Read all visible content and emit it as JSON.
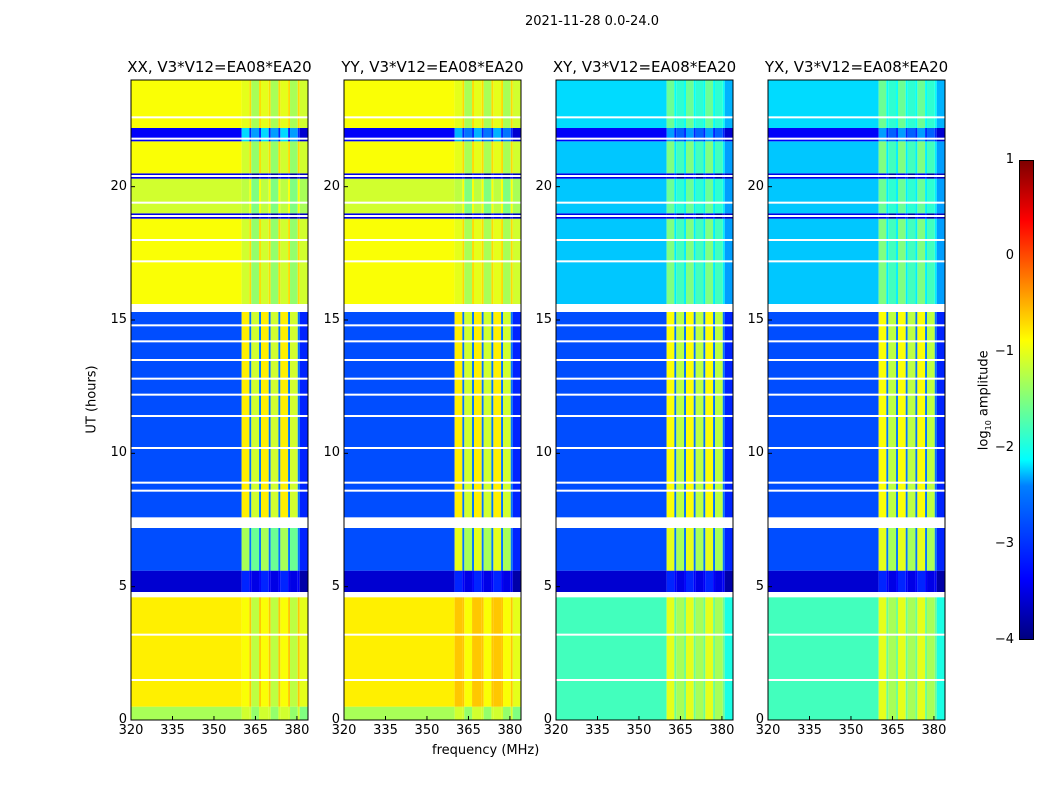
{
  "suptitle": "2021-11-28 0.0-24.0",
  "chart_data": {
    "type": "heatmap",
    "xlabel": "frequency (MHz)",
    "ylabel": "UT (hours)",
    "xlim": [
      320,
      384
    ],
    "ylim": [
      0,
      24
    ],
    "xticks": [
      "320",
      "335",
      "350",
      "365",
      "380"
    ],
    "yticks": [
      "0",
      "5",
      "10",
      "15",
      "20"
    ],
    "colorbar": {
      "label": "log10 amplitude",
      "label_main": "log",
      "label_sub": "10",
      "label_rest": " amplitude",
      "range": [
        -4,
        1
      ],
      "ticks": [
        "1",
        "0",
        "−1",
        "−2",
        "−3",
        "−4"
      ],
      "colormap": "jet"
    },
    "rfi_band_mhz": [
      360,
      381
    ],
    "flagged_hours": [
      1.5,
      3.2,
      4.7,
      7.3,
      7.5,
      8.6,
      8.9,
      10.2,
      11.4,
      12.2,
      12.8,
      13.5,
      14.2,
      14.8,
      15.4,
      15.5,
      17.2,
      18.0,
      18.9,
      19.4,
      20.4,
      21.8,
      22.6
    ],
    "panels": [
      {
        "title": "XX, V3*V12=EA08*EA20",
        "bands": [
          [
            0,
            0.5,
            -1.3,
            -1.1
          ],
          [
            0.5,
            4.6,
            -0.8,
            -0.9
          ],
          [
            4.8,
            5.6,
            -3.6,
            -3.2
          ],
          [
            5.6,
            7.2,
            -3.0,
            -1.3
          ],
          [
            7.6,
            15.3,
            -3.0,
            -0.8
          ],
          [
            15.6,
            18.8,
            -0.9,
            -1.1
          ],
          [
            18.8,
            19.0,
            -3.5,
            -3.5
          ],
          [
            19.0,
            20.3,
            -1.1,
            -1.2
          ],
          [
            20.3,
            20.5,
            -3.5,
            -3.5
          ],
          [
            20.5,
            21.7,
            -0.9,
            -1.1
          ],
          [
            21.7,
            22.2,
            -3.4,
            -2.3
          ],
          [
            22.2,
            24,
            -0.9,
            -1.0
          ]
        ]
      },
      {
        "title": "YY, V3*V12=EA08*EA20",
        "bands": [
          [
            0,
            0.5,
            -1.3,
            -1.1
          ],
          [
            0.5,
            4.6,
            -0.8,
            -0.6
          ],
          [
            4.8,
            5.6,
            -3.6,
            -3.2
          ],
          [
            5.6,
            7.2,
            -3.0,
            -1.0
          ],
          [
            7.6,
            15.3,
            -3.0,
            -0.8
          ],
          [
            15.6,
            18.8,
            -0.9,
            -1.0
          ],
          [
            18.8,
            19.0,
            -3.5,
            -3.5
          ],
          [
            19.0,
            20.3,
            -1.1,
            -1.2
          ],
          [
            20.3,
            20.5,
            -3.5,
            -3.5
          ],
          [
            20.5,
            21.7,
            -0.9,
            -1.0
          ],
          [
            21.7,
            22.2,
            -3.4,
            -2.5
          ],
          [
            22.2,
            24,
            -0.9,
            -1.0
          ]
        ]
      },
      {
        "title": "XY, V3*V12=EA08*EA20",
        "bands": [
          [
            0,
            4.6,
            -1.8,
            -1.0
          ],
          [
            4.8,
            5.6,
            -3.6,
            -3.2
          ],
          [
            5.6,
            7.2,
            -3.0,
            -1.0
          ],
          [
            7.6,
            15.3,
            -3.0,
            -0.9
          ],
          [
            15.6,
            18.8,
            -2.4,
            -1.5
          ],
          [
            18.8,
            19.0,
            -3.5,
            -3.5
          ],
          [
            19.0,
            20.3,
            -2.4,
            -1.6
          ],
          [
            20.3,
            20.5,
            -3.5,
            -3.5
          ],
          [
            20.5,
            21.7,
            -2.4,
            -1.5
          ],
          [
            21.7,
            22.2,
            -3.4,
            -2.6
          ],
          [
            22.2,
            24,
            -2.3,
            -1.6
          ]
        ]
      },
      {
        "title": "YX, V3*V12=EA08*EA20",
        "bands": [
          [
            0,
            4.6,
            -1.8,
            -1.0
          ],
          [
            4.8,
            5.6,
            -3.6,
            -3.2
          ],
          [
            5.6,
            7.2,
            -3.0,
            -1.0
          ],
          [
            7.6,
            15.3,
            -3.0,
            -0.9
          ],
          [
            15.6,
            18.8,
            -2.4,
            -1.5
          ],
          [
            18.8,
            19.0,
            -3.5,
            -3.5
          ],
          [
            19.0,
            20.3,
            -2.4,
            -1.6
          ],
          [
            20.3,
            20.5,
            -3.5,
            -3.5
          ],
          [
            20.5,
            21.7,
            -2.4,
            -1.5
          ],
          [
            21.7,
            22.2,
            -3.4,
            -2.6
          ],
          [
            22.2,
            24,
            -2.3,
            -1.6
          ]
        ]
      }
    ]
  }
}
